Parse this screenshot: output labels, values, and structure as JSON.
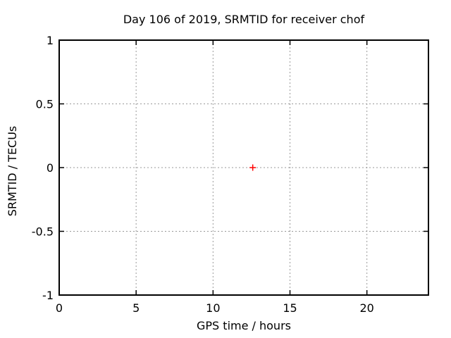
{
  "title": "Day 106 of 2019, SRMTID for receiver chof",
  "chart_data": {
    "type": "scatter",
    "title": "Day 106 of 2019, SRMTID for receiver chof",
    "xlabel": "GPS time / hours",
    "ylabel": "SRMTID / TECUs",
    "xlim": [
      0,
      24
    ],
    "ylim": [
      -1,
      1
    ],
    "xticks": [
      0,
      5,
      10,
      15,
      20
    ],
    "xtick_labels": [
      "0",
      "5",
      "10",
      "15",
      "20"
    ],
    "yticks": [
      -1,
      -0.5,
      0,
      0.5,
      1
    ],
    "ytick_labels": [
      "-1",
      "-0.5",
      "0",
      "0.5",
      "1"
    ],
    "grid": true,
    "legend": "none",
    "series": [
      {
        "name": "SRMTID",
        "marker": "plus",
        "color": "#ff0000",
        "points": [
          {
            "x": 12.58,
            "y": 0
          }
        ]
      }
    ]
  },
  "colors": {
    "background": "#ffffff",
    "border": "#000000",
    "grid": "#999999",
    "text": "#000000",
    "marker": "#ff0000"
  }
}
